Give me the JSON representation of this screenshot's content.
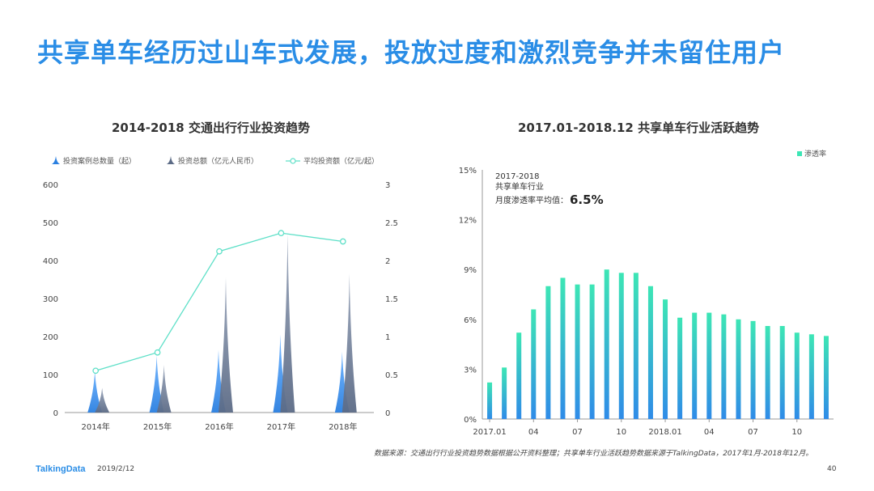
{
  "page": {
    "title": "共享单车经历过山车式发展，投放过度和激烈竞争并未留住用户",
    "source_note": "数据来源：交通出行行业投资趋势数据根据公开资料整理；共享单车行业活跃趋势数据来源于TalkingData，2017年1月-2018年12月。",
    "brand": "TalkingData",
    "date": "2019/2/12",
    "page_number": "40"
  },
  "colors": {
    "title": "#2a8de6",
    "cases": "#2a7fe0",
    "amount": "#5c6b86",
    "avg_line": "#5fe0c8",
    "bar_top": "#3de6b5",
    "bar_bottom": "#2f8be8"
  },
  "chart_data": [
    {
      "type": "bar",
      "title": "2014-2018  交通出行行业投资趋势",
      "categories": [
        "2014年",
        "2015年",
        "2016年",
        "2017年",
        "2018年"
      ],
      "legend": [
        "投资案例总数量（起）",
        "投资总额（亿元人民币）",
        "平均投资额（亿元/起）"
      ],
      "y_left": {
        "ticks": [
          "0",
          "100",
          "200",
          "300",
          "400",
          "500",
          "600"
        ],
        "range": [
          0,
          600
        ]
      },
      "y_right": {
        "ticks": [
          "0",
          "0.5",
          "1",
          "1.5",
          "2",
          "2.5",
          "3"
        ],
        "range": [
          0,
          3
        ]
      },
      "series": [
        {
          "name": "投资案例总数量（起）",
          "axis": "left",
          "style": "spike",
          "values": [
            110,
            150,
            165,
            205,
            160
          ]
        },
        {
          "name": "投资总额（亿元人民币）",
          "axis": "left",
          "style": "spike",
          "values": [
            65,
            125,
            355,
            470,
            365
          ]
        },
        {
          "name": "平均投资额（亿元/起）",
          "axis": "right",
          "style": "line",
          "values": [
            0.55,
            0.79,
            2.12,
            2.36,
            2.25
          ]
        }
      ]
    },
    {
      "type": "bar",
      "title": "2017.01-2018.12  共享单车行业活跃趋势",
      "legend": [
        "渗透率"
      ],
      "annotation": {
        "line1": "2017-2018",
        "line2": "共享单车行业",
        "line3": "月度渗透率平均值：",
        "value": "6.5%"
      },
      "x_tick_labels": [
        "2017.01",
        "04",
        "07",
        "10",
        "2018.01",
        "04",
        "07",
        "10"
      ],
      "y_ticks": [
        "0%",
        "3%",
        "6%",
        "9%",
        "12%",
        "15%"
      ],
      "ylim": [
        0,
        15
      ],
      "series": [
        {
          "name": "渗透率",
          "values": [
            2.2,
            3.1,
            5.2,
            6.6,
            8.0,
            8.5,
            8.1,
            8.1,
            9.0,
            8.8,
            8.8,
            8.0,
            7.2,
            6.1,
            6.4,
            6.4,
            6.3,
            6.0,
            5.9,
            5.6,
            5.6,
            5.2,
            5.1,
            5.0
          ]
        }
      ]
    }
  ]
}
